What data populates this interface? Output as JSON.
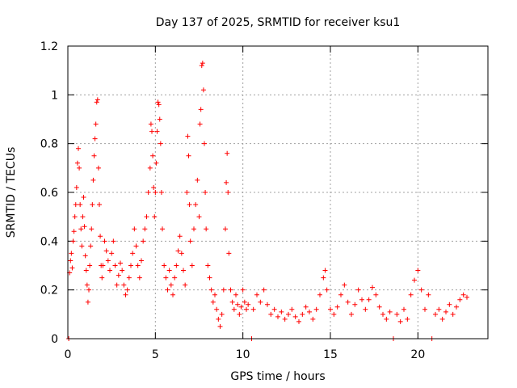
{
  "chart_data": {
    "type": "scatter",
    "title": "Day 137 of 2025, SRMTID for receiver ksu1",
    "xlabel": "GPS time / hours",
    "ylabel": "SRMTID / TECUs",
    "xlim": [
      0,
      24
    ],
    "ylim": [
      0,
      1.2
    ],
    "xticks": [
      0,
      5,
      10,
      15,
      20
    ],
    "xtick_labels": [
      "0",
      "5",
      "10",
      "15",
      "20"
    ],
    "yticks": [
      0,
      0.2,
      0.4,
      0.6,
      0.8,
      1.0,
      1.2
    ],
    "ytick_labels": [
      "0",
      "0.2",
      "0.4",
      "0.6",
      "0.8",
      "1",
      "1.2"
    ],
    "grid": true,
    "marker": "plus",
    "series": [
      {
        "name": "SRMTID",
        "color": "#ff0000",
        "points": [
          [
            0.05,
            0.0
          ],
          [
            0.1,
            0.27
          ],
          [
            0.15,
            0.32
          ],
          [
            0.2,
            0.35
          ],
          [
            0.25,
            0.29
          ],
          [
            0.3,
            0.4
          ],
          [
            0.35,
            0.44
          ],
          [
            0.4,
            0.5
          ],
          [
            0.45,
            0.55
          ],
          [
            0.5,
            0.62
          ],
          [
            0.55,
            0.72
          ],
          [
            0.6,
            0.78
          ],
          [
            0.65,
            0.7
          ],
          [
            0.7,
            0.55
          ],
          [
            0.75,
            0.45
          ],
          [
            0.8,
            0.38
          ],
          [
            0.85,
            0.5
          ],
          [
            0.9,
            0.58
          ],
          [
            0.95,
            0.46
          ],
          [
            1.0,
            0.34
          ],
          [
            1.05,
            0.28
          ],
          [
            1.1,
            0.22
          ],
          [
            1.15,
            0.15
          ],
          [
            1.2,
            0.2
          ],
          [
            1.25,
            0.3
          ],
          [
            1.3,
            0.38
          ],
          [
            1.35,
            0.45
          ],
          [
            1.4,
            0.55
          ],
          [
            1.45,
            0.65
          ],
          [
            1.5,
            0.75
          ],
          [
            1.55,
            0.82
          ],
          [
            1.6,
            0.88
          ],
          [
            1.65,
            0.97
          ],
          [
            1.7,
            0.98
          ],
          [
            1.75,
            0.7
          ],
          [
            1.8,
            0.55
          ],
          [
            1.85,
            0.42
          ],
          [
            1.9,
            0.3
          ],
          [
            1.95,
            0.25
          ],
          [
            2.0,
            0.3
          ],
          [
            2.1,
            0.4
          ],
          [
            2.2,
            0.36
          ],
          [
            2.3,
            0.32
          ],
          [
            2.4,
            0.28
          ],
          [
            2.5,
            0.35
          ],
          [
            2.6,
            0.4
          ],
          [
            2.7,
            0.3
          ],
          [
            2.8,
            0.22
          ],
          [
            2.9,
            0.26
          ],
          [
            3.0,
            0.31
          ],
          [
            3.1,
            0.28
          ],
          [
            3.2,
            0.22
          ],
          [
            3.3,
            0.18
          ],
          [
            3.4,
            0.2
          ],
          [
            3.5,
            0.25
          ],
          [
            3.6,
            0.3
          ],
          [
            3.7,
            0.35
          ],
          [
            3.8,
            0.45
          ],
          [
            3.9,
            0.38
          ],
          [
            4.0,
            0.3
          ],
          [
            4.1,
            0.25
          ],
          [
            4.2,
            0.32
          ],
          [
            4.3,
            0.4
          ],
          [
            4.4,
            0.45
          ],
          [
            4.5,
            0.5
          ],
          [
            4.6,
            0.6
          ],
          [
            4.7,
            0.7
          ],
          [
            4.75,
            0.88
          ],
          [
            4.8,
            0.85
          ],
          [
            4.85,
            0.75
          ],
          [
            4.9,
            0.62
          ],
          [
            4.95,
            0.5
          ],
          [
            5.0,
            0.6
          ],
          [
            5.05,
            0.72
          ],
          [
            5.1,
            0.85
          ],
          [
            5.15,
            0.97
          ],
          [
            5.2,
            0.96
          ],
          [
            5.25,
            0.9
          ],
          [
            5.3,
            0.8
          ],
          [
            5.35,
            0.6
          ],
          [
            5.4,
            0.45
          ],
          [
            5.5,
            0.3
          ],
          [
            5.6,
            0.25
          ],
          [
            5.7,
            0.2
          ],
          [
            5.8,
            0.28
          ],
          [
            5.9,
            0.22
          ],
          [
            6.0,
            0.18
          ],
          [
            6.1,
            0.25
          ],
          [
            6.2,
            0.3
          ],
          [
            6.3,
            0.36
          ],
          [
            6.4,
            0.42
          ],
          [
            6.5,
            0.35
          ],
          [
            6.6,
            0.28
          ],
          [
            6.7,
            0.22
          ],
          [
            6.8,
            0.6
          ],
          [
            6.85,
            0.83
          ],
          [
            6.9,
            0.75
          ],
          [
            6.95,
            0.55
          ],
          [
            7.0,
            0.4
          ],
          [
            7.1,
            0.3
          ],
          [
            7.2,
            0.45
          ],
          [
            7.3,
            0.55
          ],
          [
            7.4,
            0.65
          ],
          [
            7.5,
            0.5
          ],
          [
            7.55,
            0.88
          ],
          [
            7.6,
            0.94
          ],
          [
            7.65,
            1.12
          ],
          [
            7.7,
            1.13
          ],
          [
            7.75,
            1.02
          ],
          [
            7.8,
            0.8
          ],
          [
            7.85,
            0.6
          ],
          [
            7.9,
            0.45
          ],
          [
            8.0,
            0.3
          ],
          [
            8.1,
            0.25
          ],
          [
            8.2,
            0.2
          ],
          [
            8.3,
            0.15
          ],
          [
            8.4,
            0.18
          ],
          [
            8.5,
            0.12
          ],
          [
            8.6,
            0.08
          ],
          [
            8.7,
            0.05
          ],
          [
            8.8,
            0.1
          ],
          [
            8.9,
            0.2
          ],
          [
            9.0,
            0.45
          ],
          [
            9.05,
            0.64
          ],
          [
            9.1,
            0.76
          ],
          [
            9.15,
            0.6
          ],
          [
            9.2,
            0.35
          ],
          [
            9.3,
            0.2
          ],
          [
            9.4,
            0.15
          ],
          [
            9.5,
            0.12
          ],
          [
            9.6,
            0.18
          ],
          [
            9.7,
            0.14
          ],
          [
            9.8,
            0.1
          ],
          [
            9.9,
            0.13
          ],
          [
            10.0,
            0.2
          ],
          [
            10.1,
            0.15
          ],
          [
            10.2,
            0.12
          ],
          [
            10.3,
            0.14
          ],
          [
            10.5,
            0.0
          ],
          [
            10.6,
            0.12
          ],
          [
            10.8,
            0.18
          ],
          [
            11.0,
            0.15
          ],
          [
            11.2,
            0.2
          ],
          [
            11.4,
            0.14
          ],
          [
            11.6,
            0.1
          ],
          [
            11.8,
            0.12
          ],
          [
            12.0,
            0.09
          ],
          [
            12.2,
            0.11
          ],
          [
            12.4,
            0.08
          ],
          [
            12.6,
            0.1
          ],
          [
            12.8,
            0.12
          ],
          [
            13.0,
            0.09
          ],
          [
            13.2,
            0.07
          ],
          [
            13.4,
            0.1
          ],
          [
            13.6,
            0.13
          ],
          [
            13.8,
            0.11
          ],
          [
            14.0,
            0.08
          ],
          [
            14.2,
            0.12
          ],
          [
            14.4,
            0.18
          ],
          [
            14.6,
            0.25
          ],
          [
            14.7,
            0.28
          ],
          [
            14.8,
            0.2
          ],
          [
            15.0,
            0.12
          ],
          [
            15.2,
            0.1
          ],
          [
            15.4,
            0.13
          ],
          [
            15.6,
            0.18
          ],
          [
            15.8,
            0.22
          ],
          [
            16.0,
            0.15
          ],
          [
            16.2,
            0.1
          ],
          [
            16.4,
            0.14
          ],
          [
            16.6,
            0.2
          ],
          [
            16.8,
            0.16
          ],
          [
            17.0,
            0.12
          ],
          [
            17.2,
            0.16
          ],
          [
            17.4,
            0.21
          ],
          [
            17.6,
            0.18
          ],
          [
            17.8,
            0.13
          ],
          [
            18.0,
            0.1
          ],
          [
            18.2,
            0.08
          ],
          [
            18.4,
            0.11
          ],
          [
            18.6,
            0.0
          ],
          [
            18.8,
            0.1
          ],
          [
            19.0,
            0.07
          ],
          [
            19.2,
            0.12
          ],
          [
            19.4,
            0.08
          ],
          [
            19.6,
            0.18
          ],
          [
            19.8,
            0.24
          ],
          [
            20.0,
            0.28
          ],
          [
            20.2,
            0.2
          ],
          [
            20.4,
            0.12
          ],
          [
            20.6,
            0.18
          ],
          [
            20.8,
            0.0
          ],
          [
            21.0,
            0.1
          ],
          [
            21.2,
            0.12
          ],
          [
            21.4,
            0.08
          ],
          [
            21.6,
            0.11
          ],
          [
            21.8,
            0.14
          ],
          [
            22.0,
            0.1
          ],
          [
            22.2,
            0.13
          ],
          [
            22.4,
            0.16
          ],
          [
            22.6,
            0.18
          ],
          [
            22.8,
            0.17
          ]
        ]
      }
    ]
  }
}
